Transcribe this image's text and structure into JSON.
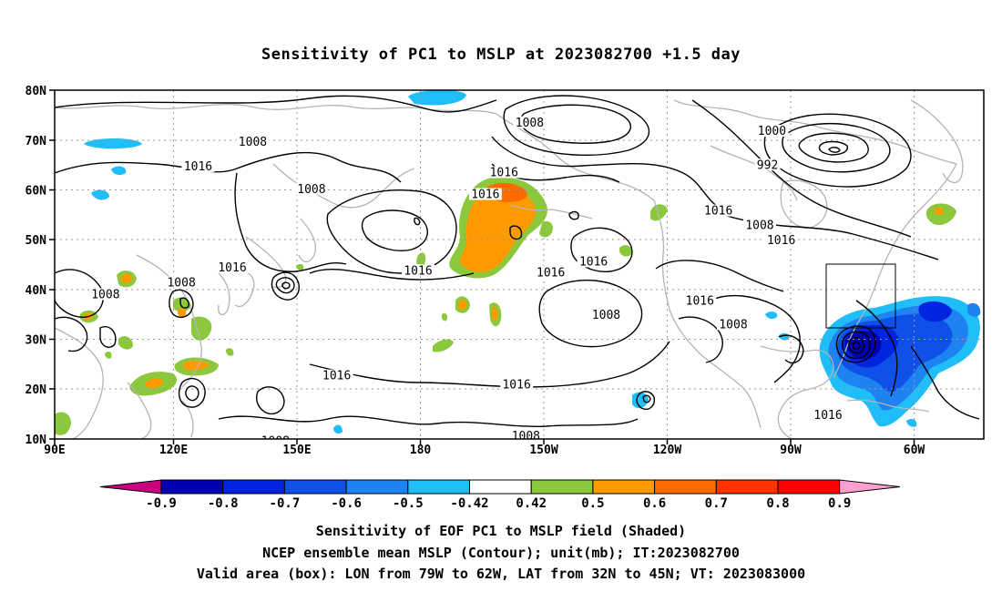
{
  "title": "Sensitivity of PC1 to MSLP at 2023082700 +1.5 day",
  "map": {
    "lat_labels": [
      "80N",
      "70N",
      "60N",
      "50N",
      "40N",
      "30N",
      "20N",
      "10N"
    ],
    "lon_labels": [
      "90E",
      "120E",
      "150E",
      "180",
      "150W",
      "120W",
      "90W",
      "60W"
    ],
    "contour_labels": [
      {
        "text": "1008",
        "lat": 69.2,
        "lon": 143.3
      },
      {
        "text": "1016",
        "lat": 64.3,
        "lon": 128.6
      },
      {
        "text": "1008",
        "lat": 59.7,
        "lon": 159.1
      },
      {
        "text": "1008",
        "lat": 73.1,
        "lon": -142.2
      },
      {
        "text": "1016",
        "lat": 63.1,
        "lon": -149.1
      },
      {
        "text": "1016",
        "lat": 58.7,
        "lon": -154.1
      },
      {
        "text": "1000",
        "lat": 71.4,
        "lon": -77.0
      },
      {
        "text": "992",
        "lat": 64.6,
        "lon": -78.2
      },
      {
        "text": "1016",
        "lat": 55.4,
        "lon": -91.4
      },
      {
        "text": "1008",
        "lat": 52.5,
        "lon": -80.3
      },
      {
        "text": "1016",
        "lat": 49.5,
        "lon": -74.5
      },
      {
        "text": "1016",
        "lat": 45.2,
        "lon": -125.0
      },
      {
        "text": "1016",
        "lat": 43.0,
        "lon": -136.5
      },
      {
        "text": "1016",
        "lat": 43.4,
        "lon": -172.2
      },
      {
        "text": "1016",
        "lat": 44.0,
        "lon": 137.8
      },
      {
        "text": "1008",
        "lat": 41.0,
        "lon": 124.1
      },
      {
        "text": "1008",
        "lat": 38.6,
        "lon": 103.7
      },
      {
        "text": "1016",
        "lat": 37.3,
        "lon": -96.4
      },
      {
        "text": "1008",
        "lat": 34.5,
        "lon": -121.6
      },
      {
        "text": "1008",
        "lat": 32.6,
        "lon": -87.4
      },
      {
        "text": "1016",
        "lat": 22.3,
        "lon": 165.9
      },
      {
        "text": "1016",
        "lat": 20.5,
        "lon": -145.7
      },
      {
        "text": "1008",
        "lat": 10.2,
        "lon": -143.2
      },
      {
        "text": "1016",
        "lat": 14.4,
        "lon": -61.9
      },
      {
        "text": "1008",
        "lat": 9.2,
        "lon": 149.4
      }
    ],
    "valid_box": {
      "lon_from": -79,
      "lon_to": -62,
      "lat_from": 32,
      "lat_to": 45
    },
    "colors": {
      "land_outline": "#b4b4b4",
      "grid": "#9a9a9a",
      "contour": "#000000"
    }
  },
  "colorbar": {
    "labels": [
      "-0.9",
      "-0.8",
      "-0.7",
      "-0.6",
      "-0.5",
      "-0.42",
      "0.42",
      "0.5",
      "0.6",
      "0.7",
      "0.8",
      "0.9"
    ],
    "colors": [
      "#c8007f",
      "#0000b4",
      "#0024e0",
      "#0f50e8",
      "#1e82f0",
      "#20bef8",
      "#ffffff",
      "#8cc83c",
      "#ff9a00",
      "#ff6a00",
      "#ff3200",
      "#ff0000",
      "#ff9ed0"
    ]
  },
  "captions": [
    "Sensitivity of EOF PC1 to MSLP field (Shaded)",
    "NCEP ensemble mean MSLP (Contour); unit(mb); IT:2023082700",
    "Valid area (box): LON from 79W to 62W, LAT from 32N to 45N; VT: 2023083000"
  ]
}
